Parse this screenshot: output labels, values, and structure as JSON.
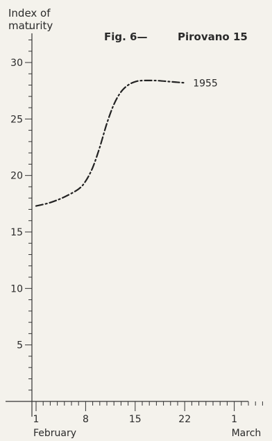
{
  "figure": {
    "ylabel_line1": "Index of",
    "ylabel_line2": "maturity",
    "fig_label": "Fig. 6—",
    "title": "Pirovano 15"
  },
  "chart_data": {
    "type": "line",
    "title": "Pirovano 15",
    "ylabel": "Index of maturity",
    "xlabel": "",
    "ylim": [
      0,
      33
    ],
    "yticks": [
      5,
      10,
      15,
      20,
      25,
      30
    ],
    "xticks": [
      {
        "day": 1,
        "label": "1",
        "sublabel": "February"
      },
      {
        "day": 8,
        "label": "8",
        "sublabel": ""
      },
      {
        "day": 15,
        "label": "15",
        "sublabel": ""
      },
      {
        "day": 22,
        "label": "22",
        "sublabel": ""
      },
      {
        "day": 29,
        "label": "1",
        "sublabel": "March"
      }
    ],
    "series": [
      {
        "name": "1955",
        "x": [
          1,
          3,
          5,
          7,
          8,
          9,
          10,
          11,
          12,
          13,
          14,
          15,
          16,
          18,
          20,
          22
        ],
        "y": [
          17.3,
          17.6,
          18.1,
          18.8,
          19.5,
          20.7,
          22.5,
          24.6,
          26.3,
          27.4,
          28.0,
          28.3,
          28.4,
          28.4,
          28.3,
          28.2
        ]
      }
    ],
    "grid": false,
    "legend": "none"
  }
}
